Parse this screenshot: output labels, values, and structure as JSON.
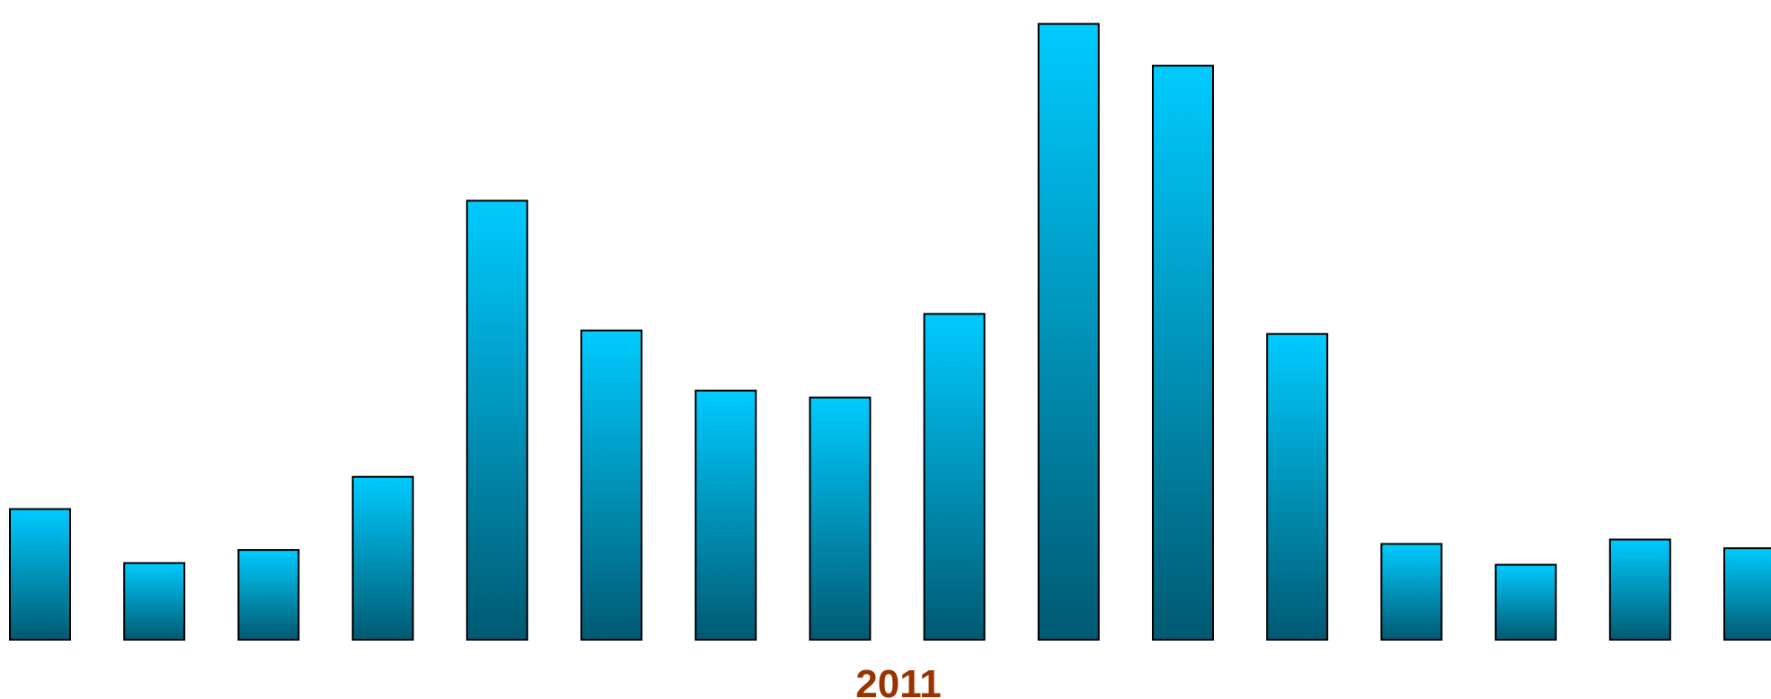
{
  "chart_data": {
    "type": "bar",
    "title": "",
    "xlabel": "",
    "ylabel": "",
    "group_label": "2011",
    "grid": false,
    "legend": "none",
    "values": [
      15,
      8.8,
      10.3,
      18.7,
      50.4,
      35.5,
      28.6,
      27.8,
      37.4,
      70.7,
      65.9,
      35.1,
      11,
      8.6,
      11.5,
      10.5
    ],
    "ylim": [
      0,
      72
    ]
  },
  "colors": {
    "bar_top": "#00cbff",
    "bar_bottom": "#005a72",
    "bar_outline": "#000000",
    "label_color": "#993300"
  }
}
